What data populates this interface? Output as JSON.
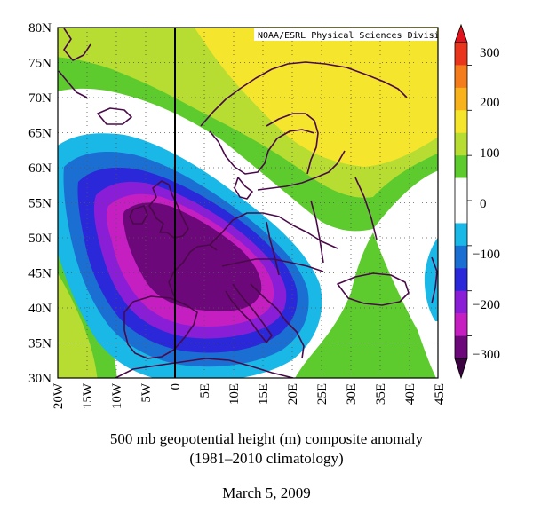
{
  "map": {
    "credit": "NOAA/ESRL Physical Sciences Division",
    "lat_labels": [
      "80N",
      "75N",
      "70N",
      "65N",
      "60N",
      "55N",
      "50N",
      "45N",
      "40N",
      "35N",
      "30N"
    ],
    "lon_labels": [
      "20W",
      "15W",
      "10W",
      "5W",
      "0",
      "5E",
      "10E",
      "15E",
      "20E",
      "25E",
      "30E",
      "35E",
      "40E",
      "45E"
    ],
    "lat_range": [
      30,
      80
    ],
    "lon_range": [
      -20,
      45
    ],
    "meridian_highlight": 0,
    "field": "500 mb geopotential height anomaly",
    "units": "m"
  },
  "colorbar": {
    "labels": [
      "300",
      "200",
      "100",
      "0",
      "−100",
      "−200",
      "−300"
    ],
    "colors": [
      "#e8351c",
      "#f57c1d",
      "#f7b21c",
      "#f5e52c",
      "#b7dd33",
      "#5dcb2d",
      "#ffffff",
      "#ffffff",
      "#19b8e6",
      "#1b6fd2",
      "#2a28d8",
      "#8a1ed6",
      "#c51fc1",
      "#6d087a"
    ],
    "range": [
      -300,
      300
    ]
  },
  "caption": {
    "line1": "500 mb geopotential height (m) composite anomaly",
    "line2": "(1981–2010 climatology)",
    "date": "March 5, 2009"
  }
}
